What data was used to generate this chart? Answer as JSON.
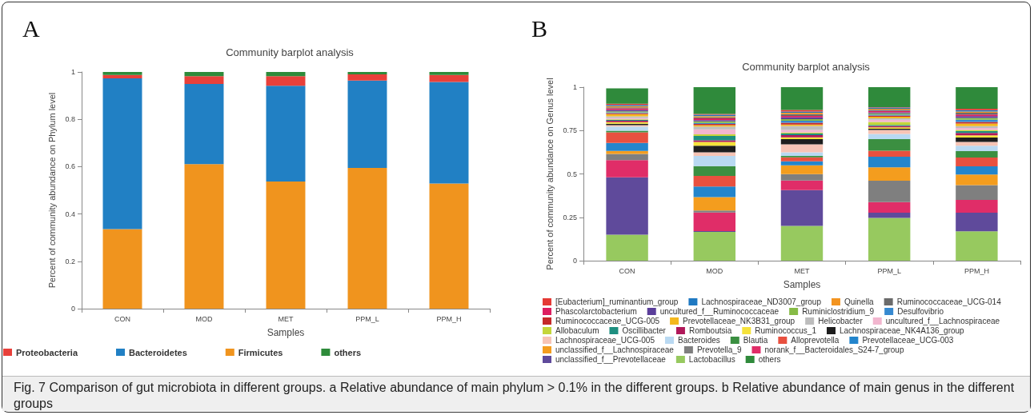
{
  "chart_data": [
    {
      "type": "bar",
      "stacked": true,
      "title": "Community barplot analysis",
      "xlabel": "Samples",
      "ylabel": "Percent of community abundance on Phylum level",
      "categories": [
        "CON",
        "MOD",
        "MET",
        "PPM_L",
        "PPM_H"
      ],
      "series": [
        {
          "name": "Firmicutes",
          "color": "#f0941e",
          "values": [
            0.336,
            0.611,
            0.537,
            0.595,
            0.529
          ]
        },
        {
          "name": "Bacteroidetes",
          "color": "#2180c4",
          "values": [
            0.637,
            0.338,
            0.405,
            0.369,
            0.429
          ]
        },
        {
          "name": "Proteobacteria",
          "color": "#e8403a",
          "values": [
            0.014,
            0.033,
            0.04,
            0.026,
            0.029
          ]
        },
        {
          "name": "others",
          "color": "#2e8b3a",
          "values": [
            0.013,
            0.018,
            0.018,
            0.01,
            0.013
          ]
        }
      ],
      "ylim": [
        0,
        1
      ],
      "yticks": [
        0,
        0.2,
        0.4,
        0.6,
        0.8,
        1
      ],
      "grid": false,
      "legend": "bottom",
      "annotations": [
        "A",
        "Fig. 7 Comparison of gut microbiota in different groups. a Relative abundance of main phylum > 0.1% in the different groups. b Relative abundance of main genus in the different groups"
      ]
    },
    {
      "type": "bar",
      "stacked": true,
      "title": "Community barplot analysis",
      "xlabel": "Samples",
      "ylabel": "Percent of community abundance on Genus level",
      "categories": [
        "CON",
        "MOD",
        "MET",
        "PPM_L",
        "PPM_H"
      ],
      "series": [
        {
          "name": "Lactobacillus",
          "color": "#97c95f",
          "values": [
            0.15,
            0.166,
            0.201,
            0.247,
            0.169
          ]
        },
        {
          "name": "unclassified_f__Prevotellaceae",
          "color": "#5f4a9b",
          "values": [
            0.33,
            0.004,
            0.206,
            0.029,
            0.107
          ]
        },
        {
          "name": "norank_f__Bacteroidales_S24-7_group",
          "color": "#e02d68",
          "values": [
            0.1,
            0.108,
            0.055,
            0.062,
            0.074
          ]
        },
        {
          "name": "Prevotella_9",
          "color": "#7f7f7f",
          "values": [
            0.035,
            0.011,
            0.037,
            0.123,
            0.086
          ]
        },
        {
          "name": "unclassified_f__Lachnospiraceae",
          "color": "#f49d1e",
          "values": [
            0.017,
            0.077,
            0.051,
            0.077,
            0.06
          ]
        },
        {
          "name": "Prevotellaceae_UCG-003",
          "color": "#2385cc",
          "values": [
            0.046,
            0.061,
            0.023,
            0.061,
            0.048
          ]
        },
        {
          "name": "Alloprevotella",
          "color": "#e8503f",
          "values": [
            0.062,
            0.061,
            0.023,
            0.035,
            0.05
          ]
        },
        {
          "name": "Blautia",
          "color": "#3b8f41",
          "values": [
            0.009,
            0.057,
            0.008,
            0.066,
            0.037
          ]
        },
        {
          "name": "Bacteroides",
          "color": "#b9d9f2",
          "values": [
            0.024,
            0.059,
            0.02,
            0.03,
            0.031
          ]
        },
        {
          "name": "Lachnospiraceae_UCG-005",
          "color": "#f7c4b5",
          "values": [
            0.008,
            0.02,
            0.046,
            0.023,
            0.022
          ]
        },
        {
          "name": "Lachnospiraceae_NK4A136_group",
          "color": "#1e1e1e",
          "values": [
            0.008,
            0.038,
            0.03,
            0.007,
            0.026
          ]
        },
        {
          "name": "Ruminococcus_1",
          "color": "#f5e23b",
          "values": [
            0.009,
            0.022,
            0.011,
            0.008,
            0.012
          ]
        },
        {
          "name": "Romboutsia",
          "color": "#b0185a",
          "values": [
            0.008,
            0.009,
            0.012,
            0.008,
            0.014
          ]
        },
        {
          "name": "Oscillibacter",
          "color": "#1e8f80",
          "values": [
            0.005,
            0.026,
            0.01,
            0.006,
            0.01
          ]
        },
        {
          "name": "Allobaculum",
          "color": "#c4d63a",
          "values": [
            0.004,
            0.009,
            0.006,
            0.018,
            0.007
          ]
        },
        {
          "name": "uncultured_f__Lachnospiraceae",
          "color": "#f2b6cf",
          "values": [
            0.008,
            0.029,
            0.015,
            0.012,
            0.012
          ]
        },
        {
          "name": "Helicobacter",
          "color": "#bdbdbd",
          "values": [
            0.009,
            0.016,
            0.023,
            0.008,
            0.01
          ]
        },
        {
          "name": "Prevotellaceae_NK3B31_group",
          "color": "#f4b81e",
          "values": [
            0.012,
            0.008,
            0.008,
            0.009,
            0.015
          ]
        },
        {
          "name": "Ruminococcaceae_UCG-005",
          "color": "#c52a2a",
          "values": [
            0.006,
            0.007,
            0.01,
            0.007,
            0.01
          ]
        },
        {
          "name": "Desulfovibrio",
          "color": "#3689d0",
          "values": [
            0.005,
            0.006,
            0.012,
            0.006,
            0.012
          ]
        },
        {
          "name": "Ruminiclostridium_9",
          "color": "#86bb46",
          "values": [
            0.006,
            0.009,
            0.009,
            0.007,
            0.011
          ]
        },
        {
          "name": "uncultured_f__Ruminococcaceae",
          "color": "#5a3e9a",
          "values": [
            0.008,
            0.007,
            0.01,
            0.006,
            0.01
          ]
        },
        {
          "name": "Phascolarctobacterium",
          "color": "#dd1e5f",
          "values": [
            0.009,
            0.01,
            0.008,
            0.008,
            0.009
          ]
        },
        {
          "name": "Ruminococcaceae_UCG-014",
          "color": "#6b6b6b",
          "values": [
            0.006,
            0.006,
            0.01,
            0.007,
            0.01
          ]
        },
        {
          "name": "Quinella",
          "color": "#f39420",
          "values": [
            0.007,
            0.007,
            0.008,
            0.006,
            0.008
          ]
        },
        {
          "name": "Lachnospiraceae_ND3007_group",
          "color": "#1f79c2",
          "values": [
            0.006,
            0.008,
            0.007,
            0.006,
            0.008
          ]
        },
        {
          "name": "[Eubacterium]_ruminantium_group",
          "color": "#e53a35",
          "values": [
            0.007,
            0.005,
            0.01,
            0.003,
            0.008
          ]
        },
        {
          "name": "others",
          "color": "#2f8a3b",
          "values": [
            0.089,
            0.154,
            0.131,
            0.115,
            0.124
          ]
        }
      ],
      "ylim": [
        0,
        1
      ],
      "yticks": [
        0,
        0.25,
        0.5,
        0.75,
        1
      ],
      "grid": false,
      "legend": "bottom",
      "annotations": [
        "B"
      ]
    }
  ]
}
